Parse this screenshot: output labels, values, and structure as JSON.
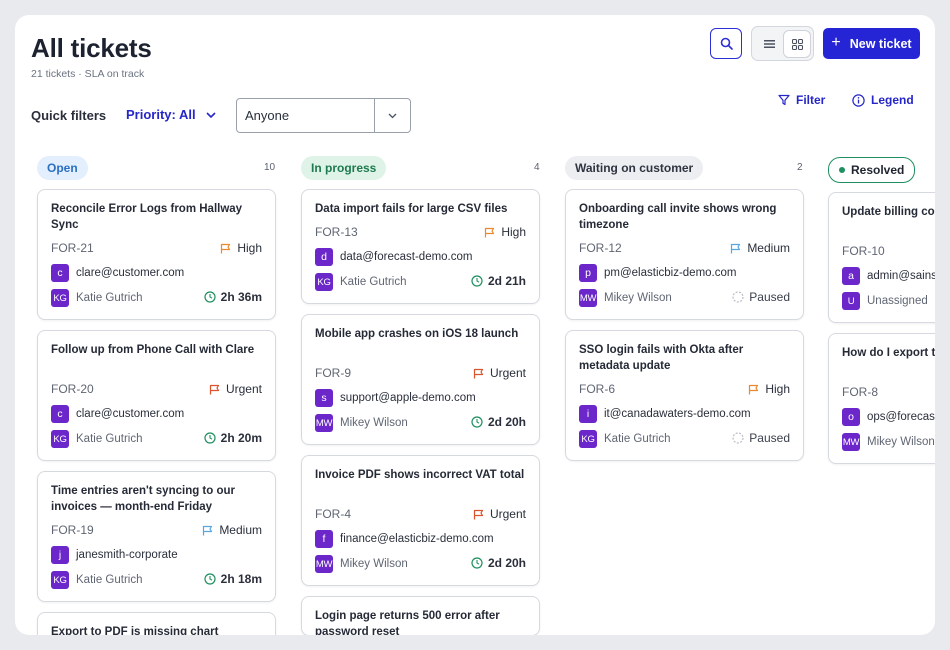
{
  "header": {
    "title": "All tickets",
    "subtitle": "21 tickets · SLA on track",
    "new_ticket_label": "New ticket"
  },
  "filters": {
    "quick_filters_label": "Quick filters",
    "priority_label": "Priority: All",
    "assignee_value": "Anyone",
    "filter_label": "Filter",
    "legend_label": "Legend"
  },
  "colors": {
    "accent": "#2525d6",
    "urgent": "#d8532e",
    "high": "#e8892b",
    "medium": "#58a6e0",
    "avatar": "#6b27c9",
    "sla_ok": "#1e8f5e"
  },
  "columns": [
    {
      "name": "Open",
      "count": "10",
      "cards": [
        {
          "title": "Reconcile Error Logs from Hallway Sync",
          "id": "FOR-21",
          "priority": "High",
          "requester_initial": "c",
          "requester": "clare@customer.com",
          "assignee_initials": "KG",
          "assignee": "Katie Gutrich",
          "sla": "2h 36m"
        },
        {
          "title": "Follow up from Phone Call with Clare",
          "id": "FOR-20",
          "priority": "Urgent",
          "requester_initial": "c",
          "requester": "clare@customer.com",
          "assignee_initials": "KG",
          "assignee": "Katie Gutrich",
          "sla": "2h 20m"
        },
        {
          "title": "Time entries aren't syncing to our invoices — month-end Friday",
          "id": "FOR-19",
          "priority": "Medium",
          "requester_initial": "j",
          "requester": "janesmith-corporate",
          "assignee_initials": "KG",
          "assignee": "Katie Gutrich",
          "sla": "2h 18m"
        },
        {
          "title": "Export to PDF is missing chart"
        }
      ]
    },
    {
      "name": "In progress",
      "count": "4",
      "cards": [
        {
          "title": "Data import fails for large CSV files",
          "id": "FOR-13",
          "priority": "High",
          "requester_initial": "d",
          "requester": "data@forecast-demo.com",
          "assignee_initials": "KG",
          "assignee": "Katie Gutrich",
          "sla": "2d 21h"
        },
        {
          "title": "Mobile app crashes on iOS 18 launch",
          "id": "FOR-9",
          "priority": "Urgent",
          "requester_initial": "s",
          "requester": "support@apple-demo.com",
          "assignee_initials": "MW",
          "assignee": "Mikey Wilson",
          "sla": "2d 20h"
        },
        {
          "title": "Invoice PDF shows incorrect VAT total",
          "id": "FOR-4",
          "priority": "Urgent",
          "requester_initial": "f",
          "requester": "finance@elasticbiz-demo.com",
          "assignee_initials": "MW",
          "assignee": "Mikey Wilson",
          "sla": "2d 20h"
        },
        {
          "title": "Login page returns 500 error after password reset"
        }
      ]
    },
    {
      "name": "Waiting on customer",
      "count": "2",
      "cards": [
        {
          "title": "Onboarding call invite shows wrong timezone",
          "id": "FOR-12",
          "priority": "Medium",
          "requester_initial": "p",
          "requester": "pm@elasticbiz-demo.com",
          "assignee_initials": "MW",
          "assignee": "Mikey Wilson",
          "sla": "Paused"
        },
        {
          "title": "SSO login fails with Okta after metadata update",
          "id": "FOR-6",
          "priority": "High",
          "requester_initial": "i",
          "requester": "it@canadawaters-demo.com",
          "assignee_initials": "KG",
          "assignee": "Katie Gutrich",
          "sla": "Paused"
        }
      ]
    },
    {
      "name": "Resolved",
      "cards": [
        {
          "title": "Update billing contact on account",
          "id": "FOR-10",
          "requester_initial": "a",
          "requester": "admin@sainsbury-demo.com",
          "assignee_initials": "U",
          "assignee": "Unassigned"
        },
        {
          "title": "How do I export tickets to CSV?",
          "id": "FOR-8",
          "requester_initial": "o",
          "requester": "ops@forecast-demo.com",
          "assignee_initials": "MW",
          "assignee": "Mikey Wilson"
        }
      ]
    }
  ]
}
